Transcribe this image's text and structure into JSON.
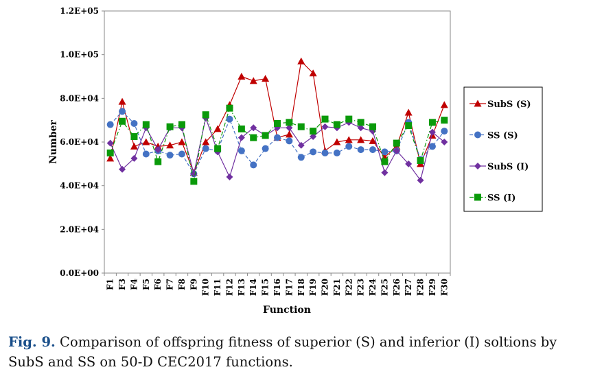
{
  "chart_data": {
    "type": "line",
    "title": "",
    "xlabel": "Function",
    "ylabel": "Number",
    "ylim": [
      0,
      120000
    ],
    "yticks": [
      0,
      20000,
      40000,
      60000,
      80000,
      100000,
      120000
    ],
    "ytick_labels": [
      "0.0E+00",
      "2.0E+04",
      "4.0E+04",
      "6.0E+04",
      "8.0E+04",
      "1.0E+05",
      "1.2E+05"
    ],
    "categories": [
      "F1",
      "F3",
      "F4",
      "F5",
      "F6",
      "F7",
      "F8",
      "F9",
      "F10",
      "F11",
      "F12",
      "F13",
      "F14",
      "F15",
      "F16",
      "F17",
      "F18",
      "F19",
      "F20",
      "F21",
      "F22",
      "F23",
      "F24",
      "F25",
      "F26",
      "F27",
      "F28",
      "F29",
      "F30"
    ],
    "legend_position": "right",
    "series": [
      {
        "name": "SubS (S)",
        "color": "#c00000",
        "marker": "triangle",
        "dash": "solid",
        "values": [
          52500,
          78500,
          58000,
          60000,
          58000,
          58500,
          60000,
          46000,
          60000,
          66000,
          77000,
          90000,
          88000,
          89000,
          62000,
          63500,
          97000,
          91500,
          56000,
          60000,
          61000,
          61000,
          60500,
          53000,
          58000,
          73500,
          50000,
          63000,
          77000
        ]
      },
      {
        "name": "SS (S)",
        "color": "#4472c4",
        "marker": "circle",
        "dash": "dash",
        "values": [
          68000,
          74000,
          68500,
          54500,
          56000,
          54000,
          54500,
          45500,
          57000,
          56000,
          70500,
          56000,
          49500,
          57000,
          62000,
          60500,
          53000,
          55500,
          55000,
          55000,
          58000,
          56500,
          56500,
          55500,
          56000,
          69000,
          52000,
          58000,
          65000
        ]
      },
      {
        "name": "SubS (I)",
        "color": "#7030a0",
        "marker": "diamond",
        "dash": "solid",
        "values": [
          59500,
          47500,
          52500,
          66500,
          56500,
          66500,
          66500,
          45500,
          71000,
          55500,
          44000,
          62000,
          66500,
          63000,
          66500,
          66500,
          58500,
          62500,
          67000,
          66500,
          69000,
          66500,
          65000,
          46000,
          56000,
          50000,
          42500,
          64500,
          60000
        ]
      },
      {
        "name": "SS (I)",
        "color": "#0a9a0a",
        "marker": "square",
        "dash": "dashdot",
        "values": [
          55000,
          69500,
          62500,
          68000,
          51000,
          67000,
          68000,
          42000,
          72500,
          57000,
          75500,
          66000,
          62000,
          63000,
          68500,
          69000,
          67000,
          65000,
          70500,
          68000,
          70500,
          69000,
          67000,
          51000,
          59500,
          67500,
          51500,
          69000,
          70000
        ]
      }
    ]
  },
  "caption": {
    "label": "Fig. 9.",
    "text": "Comparison of offspring fitness of superior (S) and inferior (I) soltions by SubS and SS on 50-D CEC2017 functions."
  }
}
